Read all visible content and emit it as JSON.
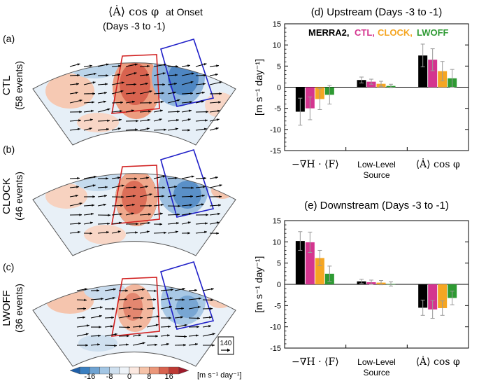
{
  "left": {
    "title_math": "⟨Ȧ⟩ cos φ",
    "title_suffix": "at Onset",
    "subtitle": "(Days  -3 to -1)",
    "panels": [
      {
        "letter": "(a)",
        "name": "CTL",
        "events": "(58 events)"
      },
      {
        "letter": "(b)",
        "name": "CLOCK",
        "events": "(46 events)"
      },
      {
        "letter": "(c)",
        "name": "LWOFF",
        "events": "(36 events)"
      }
    ],
    "ref_vector": "140",
    "colorbar": {
      "ticks": [
        "-16",
        "-8",
        "0",
        "8",
        "16"
      ],
      "units": "[m s⁻¹ day⁻¹]",
      "colors": [
        "#1f5fa8",
        "#3a7fc0",
        "#6fa3d2",
        "#a3c6e4",
        "#cfe0ef",
        "#eef3f8",
        "#fbe8e0",
        "#f6c3a9",
        "#eb977a",
        "#d8634f",
        "#be3a34",
        "#9e1b2b"
      ]
    }
  },
  "legend": {
    "items": [
      {
        "label": "MERRA2,",
        "color": "#000000"
      },
      {
        "label": "CTL,",
        "color": "#d4358f"
      },
      {
        "label": "CLOCK,",
        "color": "#f5a623"
      },
      {
        "label": "LWOFF",
        "color": "#2e9a33"
      }
    ]
  },
  "chart_data": [
    {
      "type": "bar",
      "title": "(d) Upstream (Days -3 to -1)",
      "ylabel": "[m s⁻¹ day⁻¹]",
      "ylim": [
        -15,
        15
      ],
      "yticks": [
        -15,
        -10,
        -5,
        0,
        5,
        10,
        15
      ],
      "categories": [
        "−∇H · ⟨F⟩",
        "Low-Level Source",
        "⟨Ȧ⟩ cos φ"
      ],
      "series": [
        {
          "name": "MERRA2",
          "values": [
            -5.8,
            1.7,
            7.5
          ],
          "errors": [
            3.2,
            0.7,
            2.7
          ]
        },
        {
          "name": "CTL",
          "values": [
            -5.0,
            1.3,
            6.5
          ],
          "errors": [
            2.7,
            0.6,
            2.6
          ]
        },
        {
          "name": "CLOCK",
          "values": [
            -2.8,
            0.8,
            3.8
          ],
          "errors": [
            2.5,
            0.6,
            2.3
          ]
        },
        {
          "name": "LWOFF",
          "values": [
            -1.8,
            0.3,
            2.1
          ],
          "errors": [
            2.2,
            0.4,
            2.1
          ]
        }
      ]
    },
    {
      "type": "bar",
      "title": "(e) Downstream (Days -3 to -1)",
      "ylabel": "[m s⁻¹ day⁻¹]",
      "ylim": [
        -15,
        15
      ],
      "yticks": [
        -15,
        -10,
        -5,
        0,
        5,
        10,
        15
      ],
      "categories": [
        "−∇H · ⟨F⟩",
        "Low-Level Source",
        "⟨Ȧ⟩ cos φ"
      ],
      "series": [
        {
          "name": "MERRA2",
          "values": [
            10.2,
            0.7,
            -5.5
          ],
          "errors": [
            2.2,
            0.5,
            1.8
          ]
        },
        {
          "name": "CTL",
          "values": [
            9.9,
            0.5,
            -5.9
          ],
          "errors": [
            2.4,
            0.5,
            2.1
          ]
        },
        {
          "name": "CLOCK",
          "values": [
            6.2,
            0.4,
            -5.6
          ],
          "errors": [
            1.8,
            0.5,
            1.7
          ]
        },
        {
          "name": "LWOFF",
          "values": [
            2.5,
            0.1,
            -3.2
          ],
          "errors": [
            1.8,
            0.5,
            1.6
          ]
        }
      ]
    }
  ]
}
